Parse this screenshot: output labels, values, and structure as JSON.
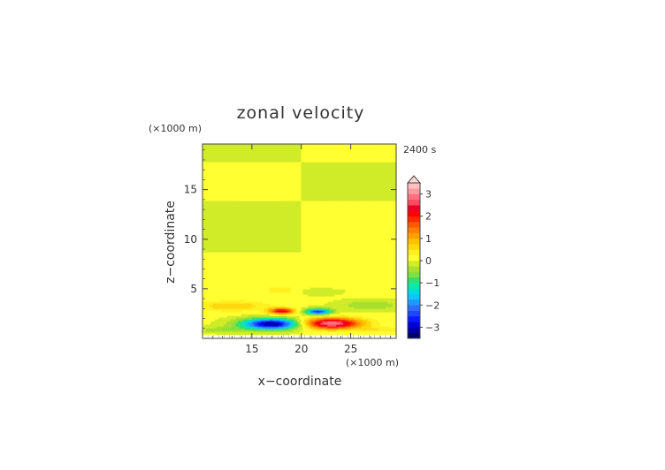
{
  "chart_data": {
    "type": "heatmap",
    "title": "zonal velocity",
    "time_label": "2400 s",
    "xlabel": "x−coordinate",
    "ylabel": "z−coordinate",
    "x_unit": "(×1000 m)",
    "y_unit": "(×1000 m)",
    "xlim": [
      10,
      29.6
    ],
    "ylim": [
      0,
      19.6
    ],
    "x_ticks": [
      15,
      20,
      25
    ],
    "y_ticks": [
      5,
      10,
      15
    ],
    "colorbar": {
      "levels": [
        -3.5,
        -3.25,
        -3,
        -2.75,
        -2.5,
        -2.25,
        -2,
        -1.75,
        -1.5,
        -1.25,
        -1,
        -0.75,
        -0.5,
        -0.25,
        0,
        0.25,
        0.5,
        0.75,
        1,
        1.25,
        1.5,
        1.75,
        2,
        2.25,
        2.5,
        2.75,
        3,
        3.25,
        3.5
      ],
      "tick_values": [
        -3,
        -2,
        -1,
        0,
        1,
        2,
        3
      ],
      "tick_labels": [
        "−3",
        "−2",
        "−1",
        "0",
        "1",
        "2",
        "3"
      ],
      "colors": [
        "#000066",
        "#0000a0",
        "#0000d8",
        "#0a1aff",
        "#1e46ff",
        "#2c6eff",
        "#1e9aff",
        "#10c4ff",
        "#00dcd8",
        "#10e8a8",
        "#30e070",
        "#80e040",
        "#a8e030",
        "#d0ec28",
        "#ffff33",
        "#fff020",
        "#ffd810",
        "#ffc000",
        "#ffa000",
        "#ff8000",
        "#ff5a00",
        "#ff2a00",
        "#ff0000",
        "#e8002a",
        "#ff4a60",
        "#ff7080",
        "#ff9aa2",
        "#ffc0c0"
      ],
      "extend_max": true
    },
    "bands": [
      {
        "z0": 0.0,
        "z1": 0.3,
        "left": 0.0,
        "right": 0.0
      },
      {
        "z0": 0.3,
        "z1": 5.0,
        "left": 0.05,
        "right": 0.05
      },
      {
        "z0": 5.0,
        "z1": 8.8,
        "left": 0.12,
        "right": 0.12
      },
      {
        "z0": 8.8,
        "z1": 13.9,
        "left": -0.12,
        "right": 0.1
      },
      {
        "z0": 13.9,
        "z1": 17.8,
        "left": 0.1,
        "right": -0.12
      },
      {
        "z0": 17.8,
        "z1": 19.6,
        "left": -0.12,
        "right": 0.1
      }
    ],
    "features": [
      {
        "x": 17.0,
        "z": 1.5,
        "sx": 3.0,
        "sz": 0.55,
        "amp": -3.3
      },
      {
        "x": 23.0,
        "z": 1.55,
        "sx": 3.0,
        "sz": 0.55,
        "amp": 3.0
      },
      {
        "x": 18.0,
        "z": 2.8,
        "sx": 1.3,
        "sz": 0.3,
        "amp": 2.3
      },
      {
        "x": 21.7,
        "z": 2.75,
        "sx": 1.3,
        "sz": 0.3,
        "amp": -2.6
      },
      {
        "x": 13.0,
        "z": 3.3,
        "sx": 3.5,
        "sz": 0.5,
        "amp": 0.7
      },
      {
        "x": 27.0,
        "z": 3.4,
        "sx": 3.0,
        "sz": 0.5,
        "amp": -0.55
      },
      {
        "x": 21.8,
        "z": 4.8,
        "sx": 2.0,
        "sz": 0.4,
        "amp": -0.3
      },
      {
        "x": 18.0,
        "z": 4.8,
        "sx": 2.0,
        "sz": 0.4,
        "amp": 0.3
      },
      {
        "x": 12.0,
        "z": 0.9,
        "sx": 2.5,
        "sz": 0.3,
        "amp": -0.5
      },
      {
        "x": 28.0,
        "z": 0.9,
        "sx": 2.0,
        "sz": 0.3,
        "amp": 0.4
      }
    ]
  }
}
